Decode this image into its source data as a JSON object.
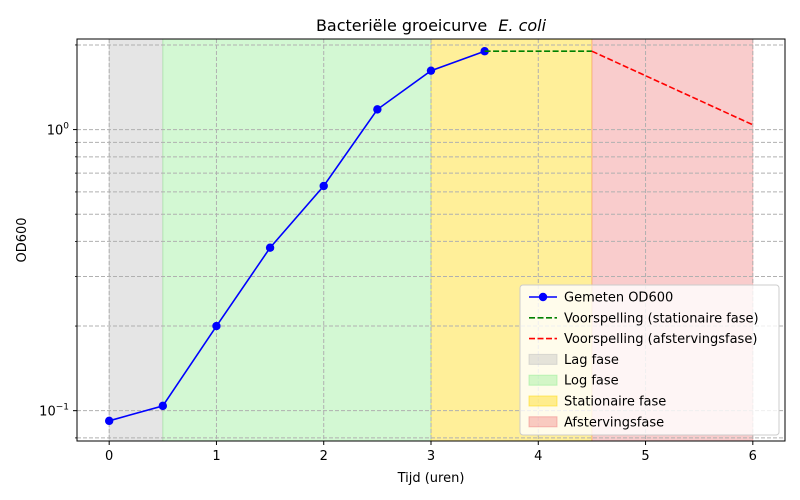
{
  "chart_data": {
    "type": "line",
    "title": "Bacteriële groeicurve",
    "title_italic": "E. coli",
    "xlabel": "Tijd (uren)",
    "ylabel": "OD600",
    "xlim": [
      -0.3,
      6.3
    ],
    "ylim": [
      0.078,
      2.1
    ],
    "yscale": "log",
    "grid": true,
    "legend_position": "lower-right",
    "x_ticks": [
      0,
      1,
      2,
      3,
      4,
      5,
      6
    ],
    "x_tick_labels": [
      "0",
      "1",
      "2",
      "3",
      "4",
      "5",
      "6"
    ],
    "y_ticks": [
      0.1,
      1
    ],
    "y_minor_ticks": [
      0.08,
      0.2,
      0.3,
      0.4,
      0.5,
      0.6,
      0.7,
      0.8,
      0.9,
      2
    ],
    "series": [
      {
        "name": "Gemeten OD600",
        "style": "line-marker",
        "color": "#0000ff",
        "x": [
          0,
          0.5,
          1,
          1.5,
          2,
          2.5,
          3,
          3.5
        ],
        "y": [
          0.092,
          0.104,
          0.2,
          0.38,
          0.63,
          1.18,
          1.62,
          1.9
        ]
      },
      {
        "name": "Voorspelling (stationaire fase)",
        "style": "dashed",
        "color": "#008000",
        "x": [
          3.5,
          4.5
        ],
        "y": [
          1.9,
          1.9
        ]
      },
      {
        "name": "Voorspelling (afstervingsfase)",
        "style": "dashed",
        "color": "#ff0000",
        "x": [
          4.5,
          6.0
        ],
        "y": [
          1.9,
          1.04
        ]
      }
    ],
    "phases": [
      {
        "name": "Lag fase",
        "x_start": 0,
        "x_end": 0.5,
        "color": "#bfbfbf"
      },
      {
        "name": "Log fase",
        "x_start": 0.5,
        "x_end": 3.0,
        "color": "#90ee90"
      },
      {
        "name": "Stationaire fase",
        "x_start": 3.0,
        "x_end": 4.5,
        "color": "#ffd700"
      },
      {
        "name": "Afstervingsfase",
        "x_start": 4.5,
        "x_end": 6.0,
        "color": "#f08080"
      }
    ]
  }
}
